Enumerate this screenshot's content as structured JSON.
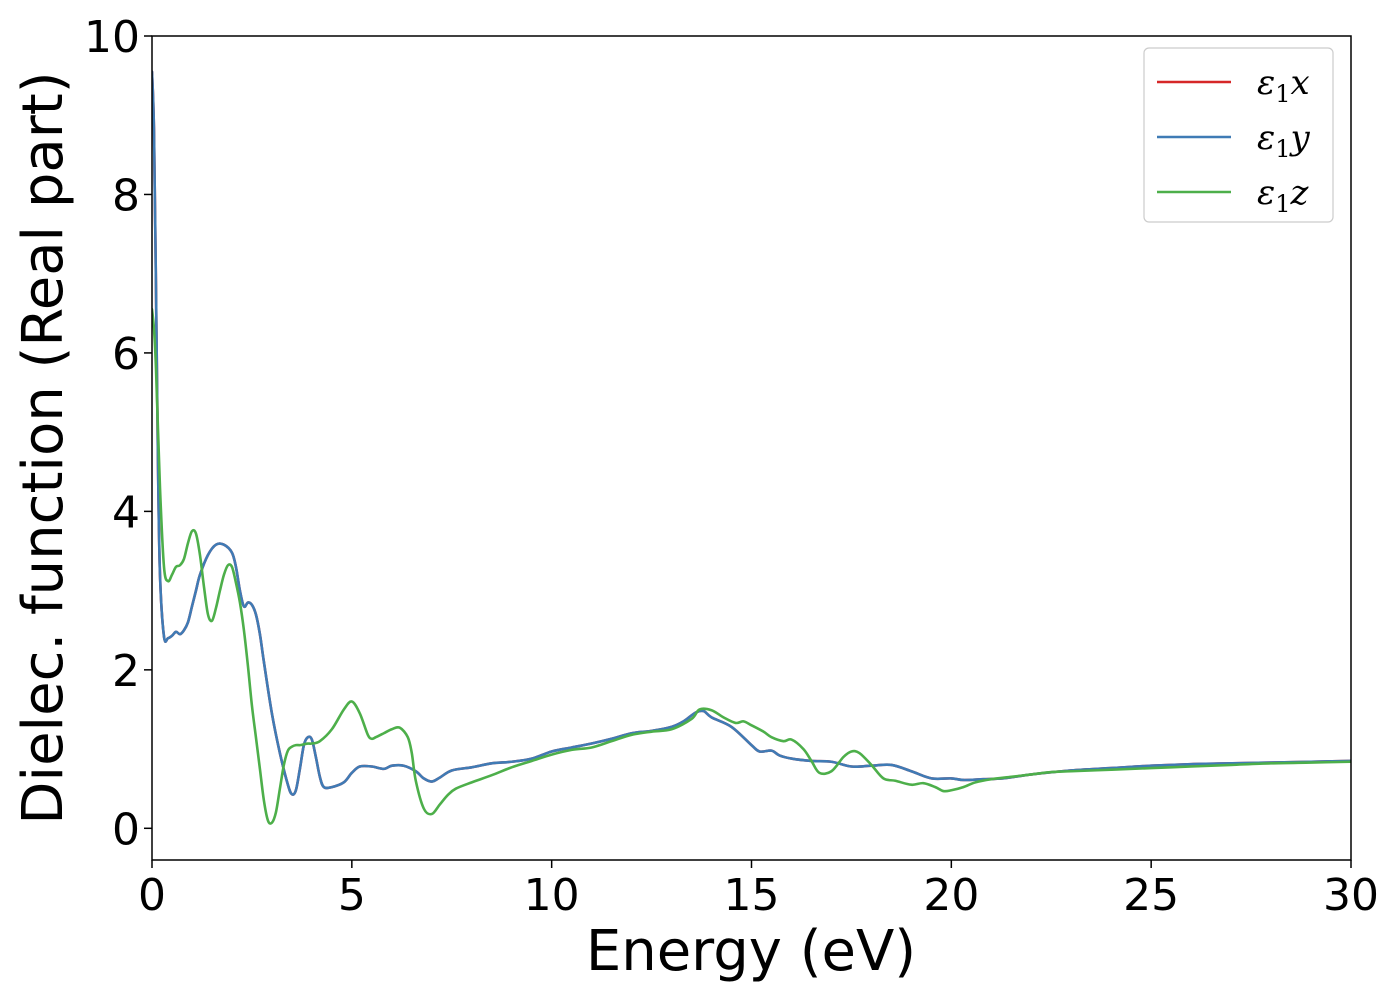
{
  "chart_data": {
    "type": "line",
    "title": "",
    "xlabel": "Energy (eV)",
    "ylabel": "Dielec. function (Real part)",
    "xlim": [
      0,
      30
    ],
    "ylim": [
      -0.4,
      10
    ],
    "xticks": [
      0,
      5,
      10,
      15,
      20,
      25,
      30
    ],
    "yticks": [
      0,
      2,
      4,
      6,
      8,
      10
    ],
    "xtick_labels": [
      "0",
      "5",
      "10",
      "15",
      "20",
      "25",
      "30"
    ],
    "ytick_labels": [
      "0",
      "2",
      "4",
      "6",
      "8",
      "10"
    ],
    "grid": false,
    "legend_position": "top-right",
    "series": [
      {
        "name": "ε₁x",
        "legend_base": "ε",
        "legend_sub": "1",
        "legend_suffix": "x",
        "color": "#d62728",
        "x": [
          0.0,
          0.05,
          0.1,
          0.15,
          0.2,
          0.3,
          0.4,
          0.5,
          0.6,
          0.7,
          0.8,
          0.9,
          1.0,
          1.1,
          1.2,
          1.4,
          1.6,
          1.8,
          2.0,
          2.1,
          2.2,
          2.3,
          2.4,
          2.5,
          2.6,
          2.7,
          2.8,
          3.0,
          3.2,
          3.4,
          3.5,
          3.6,
          3.7,
          3.8,
          3.9,
          4.0,
          4.1,
          4.2,
          4.3,
          4.5,
          4.8,
          5.0,
          5.2,
          5.5,
          5.8,
          6.0,
          6.3,
          6.6,
          6.8,
          7.0,
          7.2,
          7.5,
          8.0,
          8.5,
          9.0,
          9.5,
          10.0,
          10.5,
          11.0,
          11.5,
          12.0,
          12.5,
          13.0,
          13.3,
          13.6,
          13.8,
          14.0,
          14.5,
          15.0,
          15.2,
          15.5,
          15.7,
          16.0,
          16.5,
          17.0,
          17.5,
          18.0,
          18.5,
          19.0,
          19.5,
          20.0,
          20.3,
          20.8,
          21.3,
          22.0,
          23.0,
          24.0,
          25.0,
          26.0,
          27.0,
          28.0,
          29.0,
          30.0
        ],
        "y": [
          9.55,
          8.8,
          6.8,
          4.6,
          3.2,
          2.42,
          2.4,
          2.43,
          2.48,
          2.45,
          2.5,
          2.6,
          2.8,
          3.0,
          3.2,
          3.45,
          3.58,
          3.58,
          3.48,
          3.3,
          3.0,
          2.8,
          2.85,
          2.82,
          2.7,
          2.45,
          2.1,
          1.45,
          0.95,
          0.55,
          0.43,
          0.48,
          0.75,
          1.05,
          1.15,
          1.12,
          0.9,
          0.65,
          0.52,
          0.52,
          0.58,
          0.7,
          0.78,
          0.78,
          0.75,
          0.79,
          0.79,
          0.72,
          0.63,
          0.59,
          0.64,
          0.73,
          0.77,
          0.82,
          0.84,
          0.88,
          0.97,
          1.02,
          1.07,
          1.13,
          1.2,
          1.23,
          1.28,
          1.35,
          1.46,
          1.48,
          1.4,
          1.28,
          1.05,
          0.97,
          0.98,
          0.92,
          0.88,
          0.85,
          0.84,
          0.78,
          0.79,
          0.8,
          0.72,
          0.63,
          0.63,
          0.61,
          0.62,
          0.63,
          0.68,
          0.73,
          0.76,
          0.79,
          0.81,
          0.82,
          0.83,
          0.84,
          0.85
        ]
      },
      {
        "name": "ε₁y",
        "legend_base": "ε",
        "legend_sub": "1",
        "legend_suffix": "y",
        "color": "#3f7bb5",
        "x": [
          0.0,
          0.05,
          0.1,
          0.15,
          0.2,
          0.3,
          0.4,
          0.5,
          0.6,
          0.7,
          0.8,
          0.9,
          1.0,
          1.1,
          1.2,
          1.4,
          1.6,
          1.8,
          2.0,
          2.1,
          2.2,
          2.3,
          2.4,
          2.5,
          2.6,
          2.7,
          2.8,
          3.0,
          3.2,
          3.4,
          3.5,
          3.6,
          3.7,
          3.8,
          3.9,
          4.0,
          4.1,
          4.2,
          4.3,
          4.5,
          4.8,
          5.0,
          5.2,
          5.5,
          5.8,
          6.0,
          6.3,
          6.6,
          6.8,
          7.0,
          7.2,
          7.5,
          8.0,
          8.5,
          9.0,
          9.5,
          10.0,
          10.5,
          11.0,
          11.5,
          12.0,
          12.5,
          13.0,
          13.3,
          13.6,
          13.8,
          14.0,
          14.5,
          15.0,
          15.2,
          15.5,
          15.7,
          16.0,
          16.5,
          17.0,
          17.5,
          18.0,
          18.5,
          19.0,
          19.5,
          20.0,
          20.3,
          20.8,
          21.3,
          22.0,
          23.0,
          24.0,
          25.0,
          26.0,
          27.0,
          28.0,
          29.0,
          30.0
        ],
        "y": [
          9.55,
          8.8,
          6.8,
          4.6,
          3.2,
          2.42,
          2.4,
          2.43,
          2.48,
          2.45,
          2.5,
          2.6,
          2.8,
          3.0,
          3.2,
          3.45,
          3.58,
          3.58,
          3.48,
          3.3,
          3.0,
          2.8,
          2.85,
          2.82,
          2.7,
          2.45,
          2.1,
          1.45,
          0.95,
          0.55,
          0.43,
          0.48,
          0.75,
          1.05,
          1.15,
          1.12,
          0.9,
          0.65,
          0.52,
          0.52,
          0.58,
          0.7,
          0.78,
          0.78,
          0.75,
          0.79,
          0.79,
          0.72,
          0.63,
          0.59,
          0.64,
          0.73,
          0.77,
          0.82,
          0.84,
          0.88,
          0.97,
          1.02,
          1.07,
          1.13,
          1.2,
          1.23,
          1.28,
          1.35,
          1.46,
          1.48,
          1.4,
          1.28,
          1.05,
          0.97,
          0.98,
          0.92,
          0.88,
          0.85,
          0.84,
          0.78,
          0.79,
          0.8,
          0.72,
          0.63,
          0.63,
          0.61,
          0.62,
          0.63,
          0.68,
          0.73,
          0.76,
          0.79,
          0.81,
          0.82,
          0.83,
          0.84,
          0.85
        ]
      },
      {
        "name": "ε₁z",
        "legend_base": "ε",
        "legend_sub": "1",
        "legend_suffix": "z",
        "color": "#4daf4a",
        "x": [
          0.0,
          0.05,
          0.1,
          0.2,
          0.3,
          0.4,
          0.5,
          0.6,
          0.7,
          0.8,
          0.9,
          1.0,
          1.1,
          1.2,
          1.3,
          1.4,
          1.5,
          1.6,
          1.7,
          1.8,
          1.9,
          2.0,
          2.1,
          2.2,
          2.3,
          2.4,
          2.5,
          2.6,
          2.7,
          2.8,
          2.9,
          3.0,
          3.1,
          3.2,
          3.3,
          3.4,
          3.5,
          3.6,
          3.7,
          3.8,
          3.9,
          4.0,
          4.2,
          4.5,
          4.8,
          5.0,
          5.2,
          5.4,
          5.5,
          5.6,
          5.8,
          6.0,
          6.2,
          6.4,
          6.5,
          6.6,
          6.8,
          7.0,
          7.2,
          7.4,
          7.6,
          8.0,
          8.5,
          9.0,
          9.5,
          10.0,
          10.5,
          11.0,
          11.5,
          12.0,
          12.5,
          13.0,
          13.5,
          13.7,
          14.0,
          14.3,
          14.6,
          14.8,
          15.0,
          15.3,
          15.5,
          15.8,
          16.0,
          16.3,
          16.5,
          16.7,
          17.0,
          17.3,
          17.5,
          17.7,
          18.0,
          18.3,
          18.6,
          19.0,
          19.3,
          19.6,
          19.8,
          20.0,
          20.3,
          20.6,
          21.0,
          21.5,
          22.0,
          22.5,
          23.0,
          24.0,
          25.0,
          26.0,
          27.0,
          28.0,
          29.0,
          30.0
        ],
        "y": [
          6.55,
          6.3,
          5.8,
          4.3,
          3.3,
          3.12,
          3.2,
          3.3,
          3.32,
          3.4,
          3.6,
          3.75,
          3.72,
          3.45,
          3.05,
          2.7,
          2.62,
          2.78,
          3.0,
          3.2,
          3.32,
          3.3,
          3.1,
          2.85,
          2.5,
          2.05,
          1.55,
          1.15,
          0.75,
          0.35,
          0.1,
          0.07,
          0.2,
          0.5,
          0.8,
          0.98,
          1.03,
          1.05,
          1.05,
          1.06,
          1.07,
          1.07,
          1.1,
          1.25,
          1.5,
          1.6,
          1.45,
          1.18,
          1.13,
          1.15,
          1.2,
          1.25,
          1.27,
          1.15,
          0.95,
          0.6,
          0.25,
          0.18,
          0.3,
          0.42,
          0.5,
          0.58,
          0.67,
          0.77,
          0.85,
          0.93,
          0.99,
          1.02,
          1.1,
          1.18,
          1.22,
          1.25,
          1.38,
          1.5,
          1.49,
          1.4,
          1.33,
          1.35,
          1.3,
          1.22,
          1.15,
          1.1,
          1.12,
          1.0,
          0.85,
          0.7,
          0.72,
          0.9,
          0.97,
          0.95,
          0.8,
          0.63,
          0.6,
          0.55,
          0.57,
          0.52,
          0.47,
          0.48,
          0.52,
          0.58,
          0.62,
          0.65,
          0.68,
          0.71,
          0.72,
          0.74,
          0.76,
          0.78,
          0.8,
          0.82,
          0.83,
          0.84
        ]
      }
    ]
  }
}
